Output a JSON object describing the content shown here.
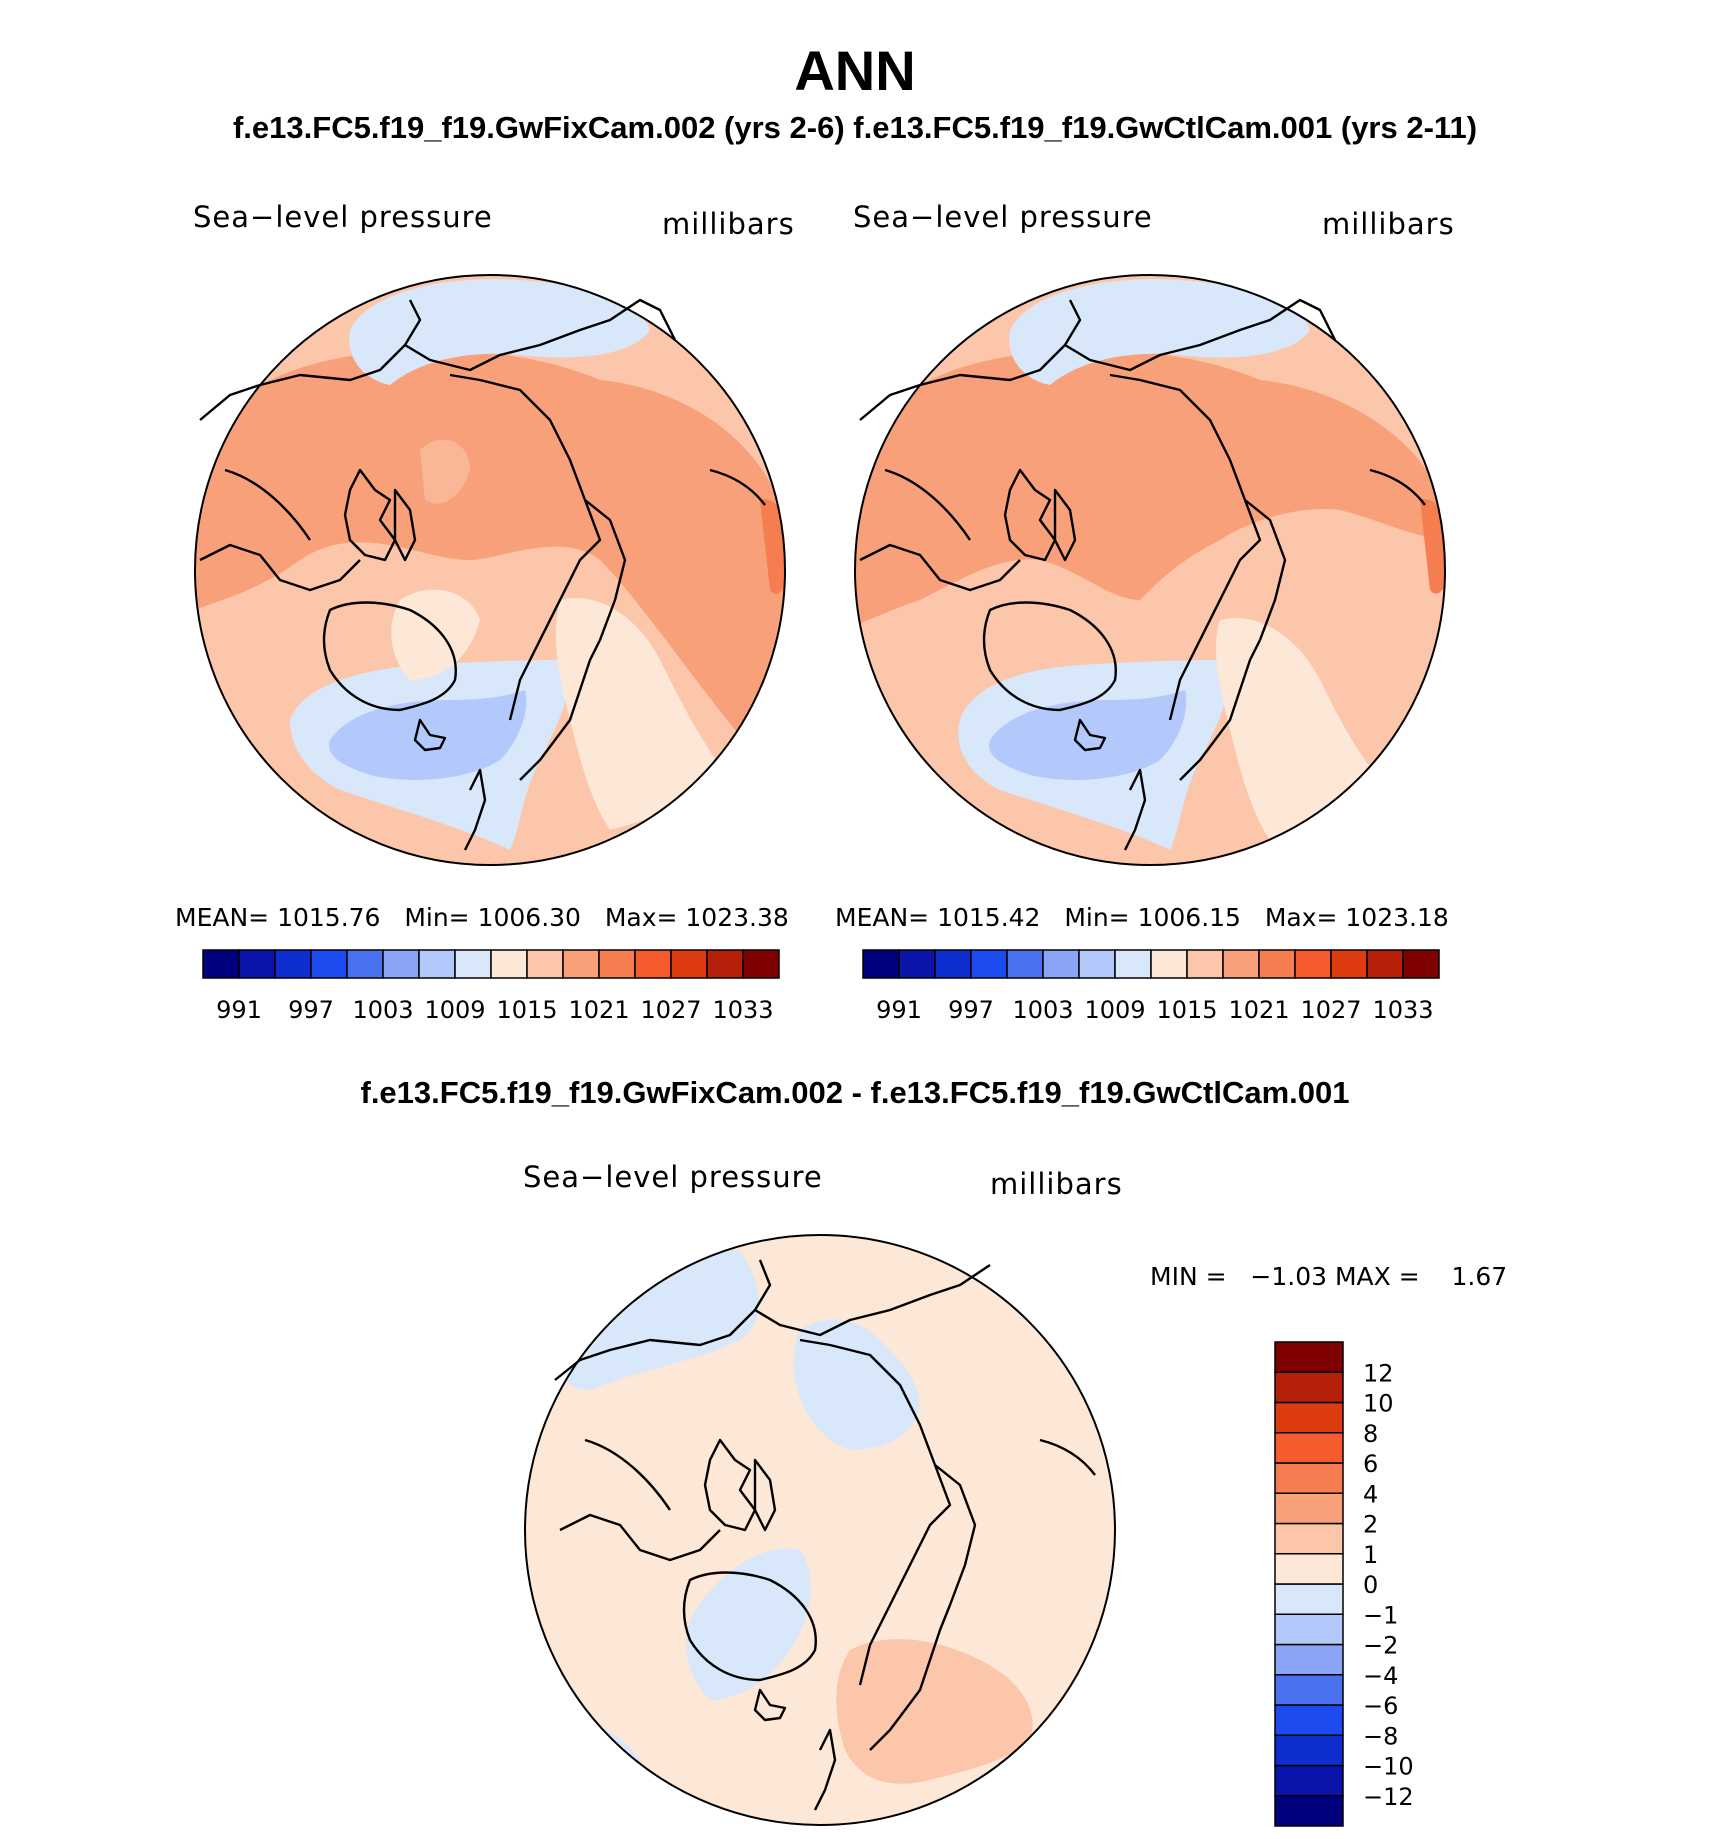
{
  "title": "ANN",
  "cases_header": "f.e13.FC5.f19_f19.GwFixCam.002 (yrs 2-6) f.e13.FC5.f19_f19.GwCtlCam.001 (yrs 2-11)",
  "diff_header": "f.e13.FC5.f19_f19.GwFixCam.002 - f.e13.FC5.f19_f19.GwCtlCam.001",
  "panels": [
    {
      "variable": "Sea−level pressure",
      "units": "millibars",
      "stats": {
        "mean_label": "MEAN=",
        "mean": "1015.76",
        "min_label": "Min=",
        "min": "1006.30",
        "max_label": "Max=",
        "max": "1023.38"
      }
    },
    {
      "variable": "Sea−level pressure",
      "units": "millibars",
      "stats": {
        "mean_label": "MEAN=",
        "mean": "1015.42",
        "min_label": "Min=",
        "min": "1006.15",
        "max_label": "Max=",
        "max": "1023.18"
      }
    },
    {
      "variable": "Sea−level pressure",
      "units": "millibars",
      "stats": {
        "min_label": "MIN =",
        "min": "−1.03",
        "max_label": "MAX =",
        "max": "1.67"
      }
    }
  ],
  "abs_colorbar": {
    "colors": [
      "#00007f",
      "#0b14a8",
      "#0f2ecf",
      "#1c4bf0",
      "#4a72f0",
      "#8aa5f5",
      "#b4c9fb",
      "#d8e8fa",
      "#fde7d6",
      "#fcc6aa",
      "#f8a07a",
      "#f57d4f",
      "#f55b2c",
      "#dd3c10",
      "#b52009",
      "#7f0000"
    ],
    "labels": [
      "991",
      "997",
      "1003",
      "1009",
      "1015",
      "1021",
      "1027",
      "1033"
    ]
  },
  "diff_colorbar": {
    "colors": [
      "#00007f",
      "#0b14a8",
      "#0f2ecf",
      "#1c4bf0",
      "#4a72f0",
      "#8aa5f5",
      "#b4c9fb",
      "#d8e8fa",
      "#fde7d6",
      "#fcc6aa",
      "#f8a07a",
      "#f57d4f",
      "#f55b2c",
      "#dd3c10",
      "#b52009",
      "#7f0000"
    ],
    "labels": [
      "−12",
      "−10",
      "−8",
      "−6",
      "−4",
      "−2",
      "−1",
      "0",
      "1",
      "2",
      "4",
      "6",
      "8",
      "10",
      "12"
    ]
  }
}
